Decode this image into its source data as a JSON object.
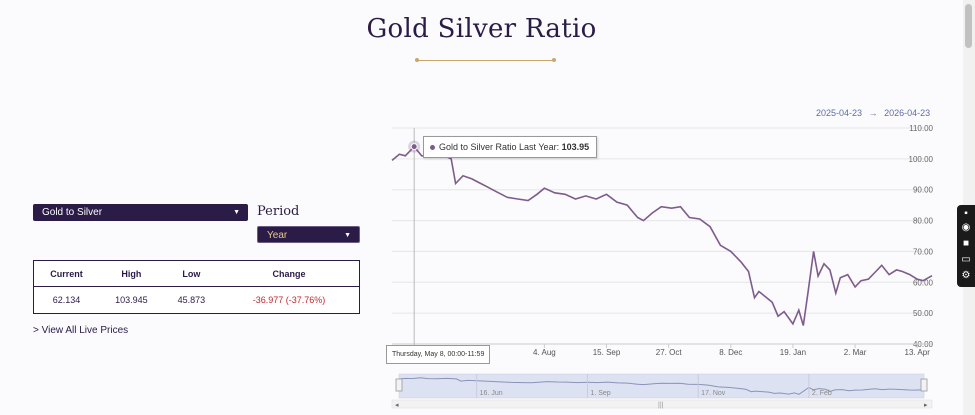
{
  "page": {
    "title": "Gold Silver Ratio"
  },
  "controls": {
    "pair_select": "Gold to Silver",
    "period_label": "Period",
    "period_select": "Year"
  },
  "stats": {
    "headers": [
      "Current",
      "High",
      "Low",
      "Change"
    ],
    "values": [
      "62.134",
      "103.945",
      "45.873",
      "-36.977 (-37.76%)"
    ]
  },
  "view_all_link": "> View All Live Prices",
  "range": {
    "from": "2025-04-23",
    "arrow": "→",
    "to": "2026-04-23"
  },
  "tooltip": {
    "series": "Gold to Silver Ratio Last Year:",
    "value": "103.95"
  },
  "hover_x_label": "Thursday, May 8, 00:00-11:59",
  "colors": {
    "accent": "#2a1b47",
    "line": "#7d5c8c",
    "gold": "#c9a66b",
    "negative": "#c0272d"
  },
  "chart_data": {
    "type": "line",
    "title": "Gold Silver Ratio",
    "series": [
      {
        "name": "Gold to Silver Ratio Last Year",
        "points": [
          [
            "2025-04-23",
            99.5
          ],
          [
            "2025-04-28",
            101.5
          ],
          [
            "2025-05-02",
            101.0
          ],
          [
            "2025-05-08",
            103.95
          ],
          [
            "2025-05-13",
            101.0
          ],
          [
            "2025-05-19",
            100.5
          ],
          [
            "2025-05-26",
            101.5
          ],
          [
            "2025-06-02",
            100.0
          ],
          [
            "2025-06-05",
            92.0
          ],
          [
            "2025-06-10",
            94.5
          ],
          [
            "2025-06-16",
            93.5
          ],
          [
            "2025-06-20",
            92.5
          ],
          [
            "2025-06-26",
            91.0
          ],
          [
            "2025-07-02",
            89.5
          ],
          [
            "2025-07-10",
            87.5
          ],
          [
            "2025-07-17",
            87.0
          ],
          [
            "2025-07-24",
            86.5
          ],
          [
            "2025-07-30",
            88.5
          ],
          [
            "2025-08-04",
            90.5
          ],
          [
            "2025-08-11",
            89.0
          ],
          [
            "2025-08-18",
            88.5
          ],
          [
            "2025-08-25",
            87.0
          ],
          [
            "2025-09-01",
            88.0
          ],
          [
            "2025-09-08",
            87.0
          ],
          [
            "2025-09-15",
            88.5
          ],
          [
            "2025-09-22",
            86.0
          ],
          [
            "2025-09-29",
            85.0
          ],
          [
            "2025-10-06",
            81.0
          ],
          [
            "2025-10-10",
            80.0
          ],
          [
            "2025-10-16",
            82.5
          ],
          [
            "2025-10-22",
            84.5
          ],
          [
            "2025-10-29",
            84.0
          ],
          [
            "2025-11-04",
            84.5
          ],
          [
            "2025-11-10",
            81.0
          ],
          [
            "2025-11-17",
            80.5
          ],
          [
            "2025-11-24",
            78.0
          ],
          [
            "2025-12-01",
            72.0
          ],
          [
            "2025-12-08",
            70.0
          ],
          [
            "2025-12-15",
            66.5
          ],
          [
            "2025-12-20",
            63.5
          ],
          [
            "2025-12-24",
            55.0
          ],
          [
            "2025-12-27",
            57.0
          ],
          [
            "2025-12-31",
            55.5
          ],
          [
            "2026-01-05",
            53.5
          ],
          [
            "2026-01-09",
            49.0
          ],
          [
            "2026-01-13",
            50.5
          ],
          [
            "2026-01-19",
            46.5
          ],
          [
            "2026-01-23",
            51.0
          ],
          [
            "2026-01-26",
            46.0
          ],
          [
            "2026-01-29",
            56.0
          ],
          [
            "2026-02-02",
            70.0
          ],
          [
            "2026-02-05",
            62.0
          ],
          [
            "2026-02-09",
            66.0
          ],
          [
            "2026-02-13",
            64.0
          ],
          [
            "2026-02-17",
            56.5
          ],
          [
            "2026-02-20",
            61.5
          ],
          [
            "2026-02-25",
            62.5
          ],
          [
            "2026-03-02",
            58.5
          ],
          [
            "2026-03-06",
            60.5
          ],
          [
            "2026-03-11",
            61.0
          ],
          [
            "2026-03-16",
            63.5
          ],
          [
            "2026-03-20",
            65.5
          ],
          [
            "2026-03-25",
            62.5
          ],
          [
            "2026-03-30",
            64.0
          ],
          [
            "2026-04-03",
            63.5
          ],
          [
            "2026-04-08",
            62.5
          ],
          [
            "2026-04-13",
            61.0
          ],
          [
            "2026-04-17",
            60.5
          ],
          [
            "2026-04-23",
            62.134
          ]
        ]
      }
    ],
    "y_ticks": [
      "110.00",
      "100.00",
      "90.00",
      "80.00",
      "70.00",
      "60.00",
      "50.00",
      "40.00"
    ],
    "ylim": [
      40,
      110
    ],
    "x_ticks": [
      "4. Aug",
      "15. Sep",
      "27. Oct",
      "8. Dec",
      "19. Jan",
      "2. Mar",
      "13. Apr"
    ],
    "x_tick_dates": [
      "2025-08-04",
      "2025-09-15",
      "2025-10-27",
      "2025-12-08",
      "2026-01-19",
      "2026-03-02",
      "2026-04-13"
    ],
    "xlim": [
      "2025-04-23",
      "2026-04-23"
    ],
    "navigator_ticks": [
      "16. Jun",
      "1. Sep",
      "17. Nov",
      "2. Feb"
    ],
    "navigator_tick_dates": [
      "2025-06-16",
      "2025-09-01",
      "2025-11-17",
      "2026-02-02"
    ],
    "grid": true
  }
}
